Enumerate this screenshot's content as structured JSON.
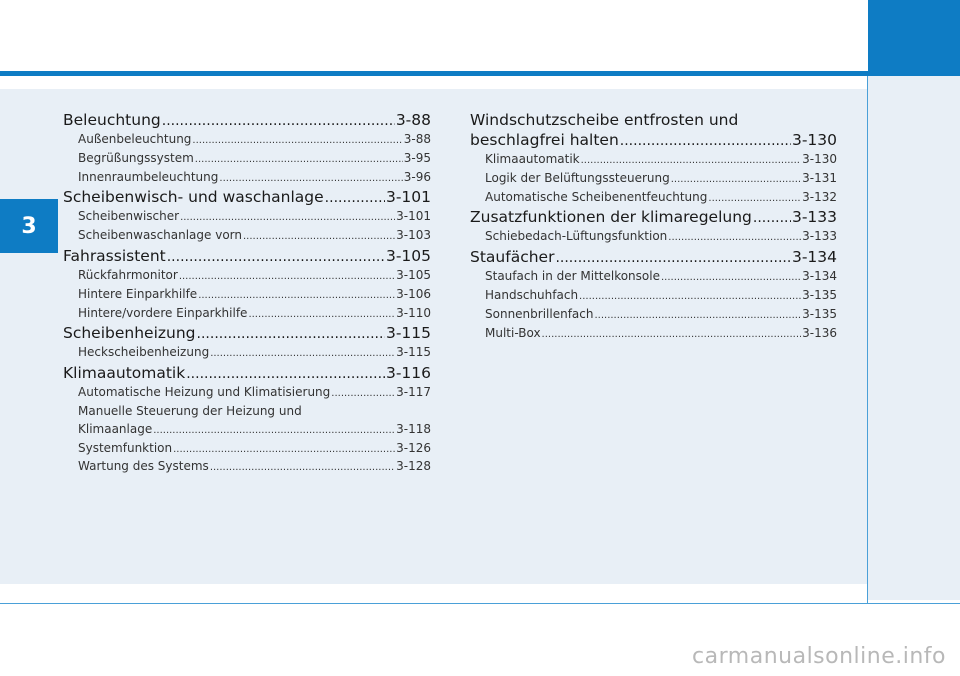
{
  "chapter": "3",
  "left_column": [
    {
      "kind": "h",
      "title": "Beleuchtung",
      "page": "3-88"
    },
    {
      "kind": "s",
      "title": "Außenbeleuchtung",
      "page": "3-88"
    },
    {
      "kind": "s",
      "title": "Begrüßungssystem",
      "page": "3-95"
    },
    {
      "kind": "s",
      "title": "Innenraumbeleuchtung",
      "page": "3-96"
    },
    {
      "kind": "h",
      "title": "Scheibenwisch- und waschanlage",
      "page": "3-101"
    },
    {
      "kind": "s",
      "title": "Scheibenwischer",
      "page": "3-101"
    },
    {
      "kind": "s",
      "title": "Scheibenwaschanlage vorn",
      "page": "3-103"
    },
    {
      "kind": "h",
      "title": "Fahrassistent",
      "page": "3-105"
    },
    {
      "kind": "s",
      "title": "Rückfahrmonitor",
      "page": "3-105"
    },
    {
      "kind": "s",
      "title": "Hintere Einparkhilfe",
      "page": "3-106"
    },
    {
      "kind": "s",
      "title": "Hintere/vordere Einparkhilfe",
      "page": "3-110"
    },
    {
      "kind": "h",
      "title": "Scheibenheizung",
      "page": "3-115"
    },
    {
      "kind": "s",
      "title": "Heckscheibenheizung",
      "page": "3-115"
    },
    {
      "kind": "h",
      "title": "Klimaautomatik",
      "page": "3-116"
    },
    {
      "kind": "s",
      "title": "Automatische Heizung und Klimatisierung",
      "page": "3-117"
    },
    {
      "kind": "s",
      "wrap": "Manuelle Steuerung der Heizung und",
      "title": "Klimaanlage",
      "page": "3-118"
    },
    {
      "kind": "s",
      "title": "Systemfunktion",
      "page": "3-126"
    },
    {
      "kind": "s",
      "title": "Wartung des Systems",
      "page": "3-128"
    }
  ],
  "right_column": [
    {
      "kind": "h",
      "wrap": "Windschutzscheibe entfrosten und",
      "title": "beschlagfrei halten",
      "page": "3-130"
    },
    {
      "kind": "s",
      "title": "Klimaautomatik",
      "page": "3-130"
    },
    {
      "kind": "s",
      "title": "Logik der Belüftungssteuerung",
      "page": "3-131"
    },
    {
      "kind": "s",
      "title": "Automatische Scheibenentfeuchtung",
      "page": "3-132"
    },
    {
      "kind": "h",
      "title": "Zusatzfunktionen der klimaregelung",
      "page": "3-133"
    },
    {
      "kind": "s",
      "title": "Schiebedach-Lüftungsfunktion",
      "page": "3-133"
    },
    {
      "kind": "h",
      "title": "Staufächer",
      "page": "3-134"
    },
    {
      "kind": "s",
      "title": "Staufach in der Mittelkonsole",
      "page": "3-134"
    },
    {
      "kind": "s",
      "title": "Handschuhfach",
      "page": "3-135"
    },
    {
      "kind": "s",
      "title": "Sonnenbrillenfach",
      "page": "3-135"
    },
    {
      "kind": "s",
      "title": "Multi-Box",
      "page": "3-136"
    }
  ],
  "watermark": "carmanualsonline.info",
  "colors": {
    "accent": "#0e7cc4",
    "panel": "#e8eff6",
    "line": "#4aa0d8"
  }
}
